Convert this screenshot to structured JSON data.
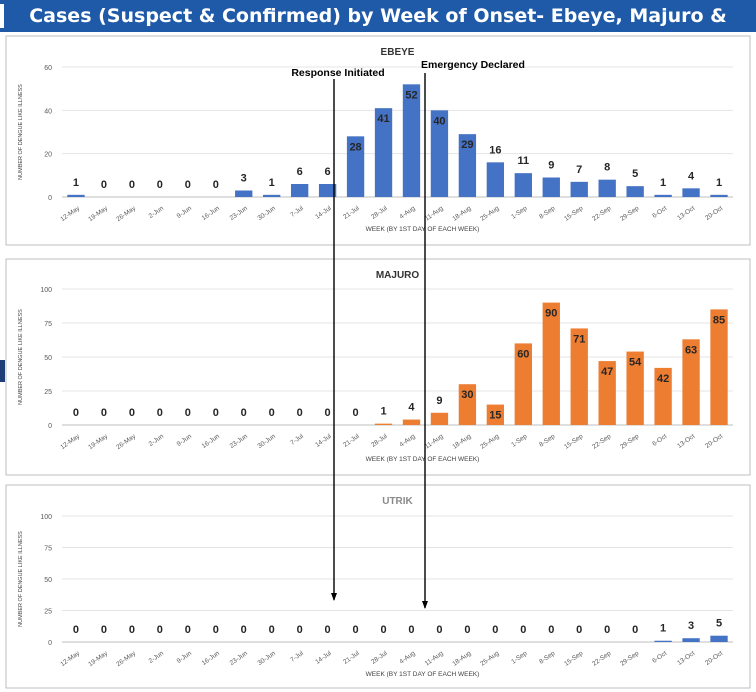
{
  "header": {
    "title": "Cases (Suspect & Confirmed) by Week of Onset- Ebeye, Majuro & Utrik"
  },
  "colors": {
    "header_bg": "#1f5aa8",
    "ebeye": "#4472c4",
    "majuro": "#ed7d31",
    "utrik": "#4472c4"
  },
  "annotations": {
    "response": "Response Initiated",
    "emergency": "Emergency Declared"
  },
  "chart_data": [
    {
      "type": "bar",
      "title": "EBEYE",
      "xlabel": "WEEK (BY 1ST DAY OF EACH WEEK)",
      "ylabel": "NUMBER OF DENGUE LIKE ILLNESS",
      "ylim": [
        0,
        60
      ],
      "yticks": [
        0,
        20,
        40,
        60
      ],
      "grid": true,
      "categories": [
        "12-May",
        "19-May",
        "26-May",
        "2-Jun",
        "9-Jun",
        "16-Jun",
        "23-Jun",
        "30-Jun",
        "7-Jul",
        "14-Jul",
        "21-Jul",
        "28-Jul",
        "4-Aug",
        "11-Aug",
        "18-Aug",
        "25-Aug",
        "1-Sep",
        "8-Sep",
        "15-Sep",
        "22-Sep",
        "29-Sep",
        "6-Oct",
        "13-Oct",
        "20-Oct"
      ],
      "values": [
        1,
        0,
        0,
        0,
        0,
        0,
        3,
        1,
        6,
        6,
        28,
        41,
        52,
        40,
        29,
        16,
        11,
        9,
        7,
        8,
        5,
        1,
        4,
        1
      ],
      "data_labels": [
        "1",
        "0",
        "0",
        "0",
        "0",
        "0",
        "3",
        "1",
        "6",
        "6",
        "28",
        "41",
        "52",
        "40",
        "29",
        "16",
        "11",
        "9",
        "7",
        "8",
        "5",
        "1",
        "4",
        "1"
      ]
    },
    {
      "type": "bar",
      "title": "MAJURO",
      "xlabel": "WEEK (BY 1ST DAY OF EACH WEEK)",
      "ylabel": "NUMBER OF DENGUE LIKE ILLNESS",
      "ylim": [
        0,
        100
      ],
      "yticks": [
        0,
        25,
        50,
        75,
        100
      ],
      "grid": true,
      "categories": [
        "12-May",
        "19-May",
        "26-May",
        "2-Jun",
        "9-Jun",
        "16-Jun",
        "23-Jun",
        "30-Jun",
        "7-Jul",
        "14-Jul",
        "21-Jul",
        "28-Jul",
        "4-Aug",
        "11-Aug",
        "18-Aug",
        "25-Aug",
        "1-Sep",
        "8-Sep",
        "15-Sep",
        "22-Sep",
        "29-Sep",
        "6-Oct",
        "13-Oct",
        "20-Oct"
      ],
      "values": [
        0,
        0,
        0,
        0,
        0,
        0,
        0,
        0,
        0,
        0,
        0,
        1,
        4,
        9,
        30,
        15,
        60,
        90,
        71,
        47,
        54,
        42,
        63,
        85
      ],
      "data_labels": [
        "0",
        "0",
        "0",
        "0",
        "0",
        "0",
        "0",
        "0",
        "0",
        "0",
        "0",
        "1",
        "4",
        "9",
        "30",
        "15",
        "60",
        "90",
        "71",
        "47",
        "54",
        "42",
        "63",
        "85"
      ]
    },
    {
      "type": "bar",
      "title": "UTRIK",
      "xlabel": "WEEK (BY 1ST DAY OF EACH WEEK)",
      "ylabel": "NUMBER OF DENGUE LIKE ILLNESS",
      "ylim": [
        0,
        100
      ],
      "yticks": [
        0,
        25,
        50,
        75,
        100
      ],
      "grid": true,
      "categories": [
        "12-May",
        "19-May",
        "26-May",
        "2-Jun",
        "9-Jun",
        "16-Jun",
        "23-Jun",
        "30-Jun",
        "7-Jul",
        "14-Jul",
        "21-Jul",
        "28-Jul",
        "4-Aug",
        "11-Aug",
        "18-Aug",
        "25-Aug",
        "1-Sep",
        "8-Sep",
        "15-Sep",
        "22-Sep",
        "29-Sep",
        "6-Oct",
        "13-Oct",
        "20-Oct"
      ],
      "values": [
        0,
        0,
        0,
        0,
        0,
        0,
        0,
        0,
        0,
        0,
        0,
        0,
        0,
        0,
        0,
        0,
        0,
        0,
        0,
        0,
        0,
        1,
        3,
        5
      ],
      "data_labels": [
        "0",
        "0",
        "0",
        "0",
        "0",
        "0",
        "0",
        "0",
        "0",
        "0",
        "0",
        "0",
        "0",
        "0",
        "0",
        "0",
        "0",
        "0",
        "0",
        "0",
        "0",
        "1",
        "3",
        "5"
      ]
    }
  ]
}
